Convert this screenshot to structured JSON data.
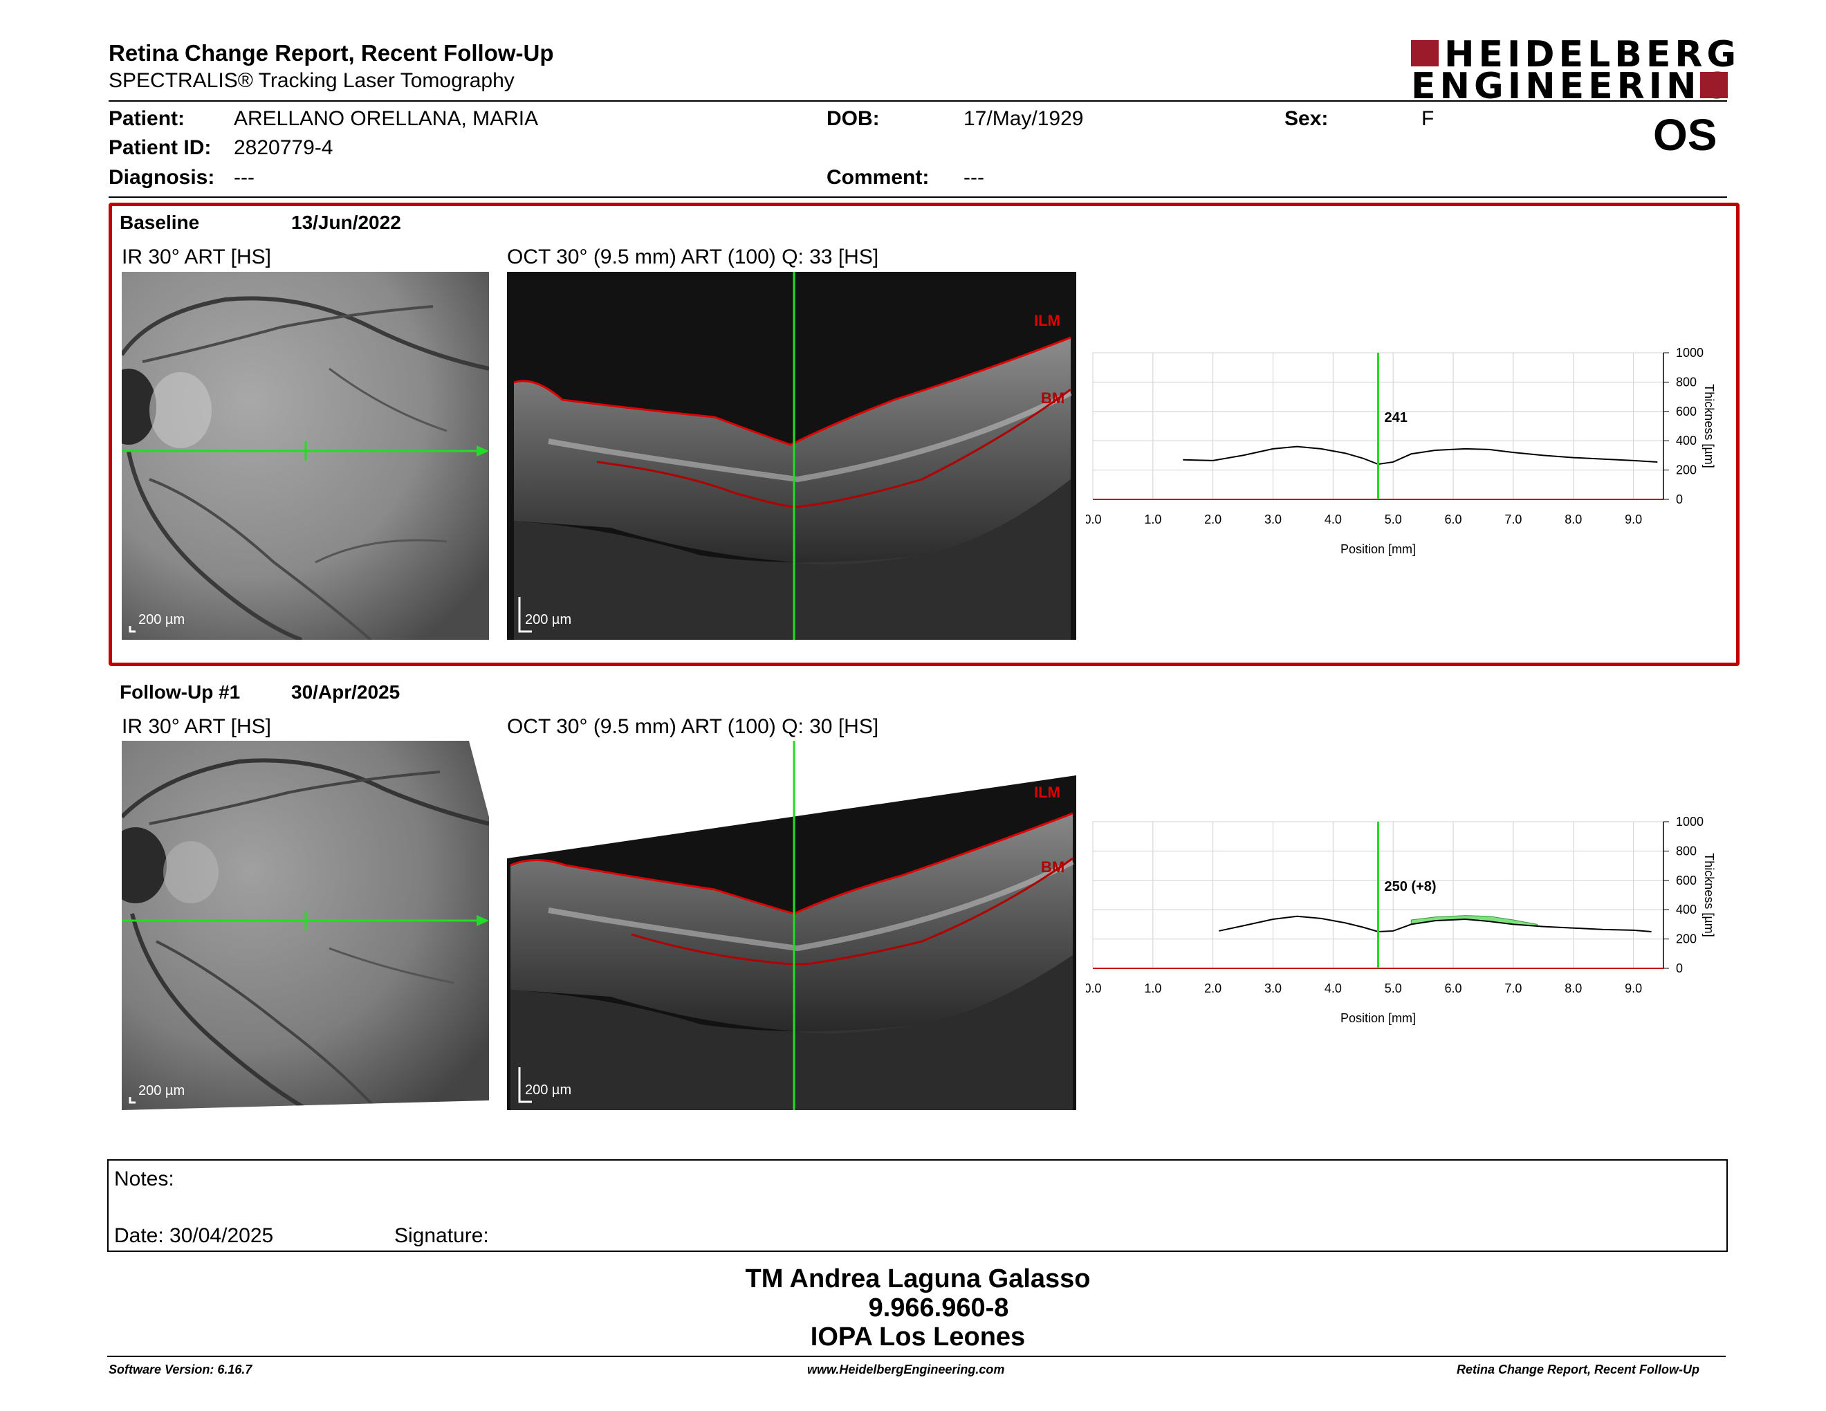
{
  "report": {
    "title": "Retina Change Report, Recent Follow-Up",
    "subtitle": "SPECTRALIS® Tracking Laser Tomography",
    "logo_line1": "HEIDELBERG",
    "logo_line2": "ENGINEERING",
    "eye": "OS"
  },
  "patient": {
    "patient_label": "Patient:",
    "patient_value": "ARELLANO ORELLANA, MARIA",
    "id_label": "Patient ID:",
    "id_value": "2820779-4",
    "diagnosis_label": "Diagnosis:",
    "diagnosis_value": "---",
    "dob_label": "DOB:",
    "dob_value": "17/May/1929",
    "comment_label": "Comment:",
    "comment_value": "---",
    "sex_label": "Sex:",
    "sex_value": "F"
  },
  "baseline": {
    "label": "Baseline",
    "date": "13/Jun/2022",
    "ir_title": "IR 30° ART [HS]",
    "oct_title": "OCT 30° (9.5 mm) ART (100) Q: 33 [HS]",
    "ir_scale": "200 µm",
    "oct_scale": "200 µm",
    "ilm": "ILM",
    "bm": "BM"
  },
  "followup": {
    "label": "Follow-Up #1",
    "date": "30/Apr/2025",
    "ir_title": "IR 30° ART [HS]",
    "oct_title": "OCT 30° (9.5 mm) ART (100) Q: 30 [HS]",
    "ir_scale": "200 µm",
    "oct_scale": "200 µm",
    "ilm": "ILM",
    "bm": "BM"
  },
  "colors": {
    "accent_red": "#c00000",
    "logo_red": "#9b1b2b",
    "scan_green": "#22dd22",
    "change_green": "#7fe07f"
  },
  "chart_data": [
    {
      "type": "line",
      "xlabel": "Position [mm]",
      "ylabel": "Thickness [µm]",
      "xlim": [
        0,
        9.5
      ],
      "ylim": [
        0,
        1000
      ],
      "x_ticks": [
        "0.0",
        "1.0",
        "2.0",
        "3.0",
        "4.0",
        "5.0",
        "6.0",
        "7.0",
        "8.0",
        "9.0"
      ],
      "y_ticks": [
        "0",
        "200",
        "400",
        "600",
        "800",
        "1000"
      ],
      "cursor_x": 4.75,
      "cursor_label": "241",
      "series": [
        {
          "x": [
            1.5,
            2.0,
            2.5,
            3.0,
            3.4,
            3.8,
            4.2,
            4.5,
            4.75,
            5.0,
            5.3,
            5.7,
            6.2,
            6.6,
            7.0,
            7.5,
            8.0,
            8.5,
            9.0,
            9.4
          ],
          "y": [
            270,
            265,
            300,
            345,
            360,
            345,
            315,
            280,
            240,
            255,
            310,
            335,
            345,
            340,
            320,
            300,
            285,
            275,
            265,
            255
          ]
        }
      ]
    },
    {
      "type": "line",
      "xlabel": "Position [mm]",
      "ylabel": "Thickness [µm]",
      "xlim": [
        0,
        9.5
      ],
      "ylim": [
        0,
        1000
      ],
      "x_ticks": [
        "0.0",
        "1.0",
        "2.0",
        "3.0",
        "4.0",
        "5.0",
        "6.0",
        "7.0",
        "8.0",
        "9.0"
      ],
      "y_ticks": [
        "0",
        "200",
        "400",
        "600",
        "800",
        "1000"
      ],
      "cursor_x": 4.75,
      "cursor_label": "250 (+8)",
      "series": [
        {
          "x": [
            2.1,
            2.5,
            3.0,
            3.4,
            3.8,
            4.2,
            4.5,
            4.75,
            5.0,
            5.3,
            5.7,
            6.2,
            6.6,
            7.0,
            7.5,
            8.0,
            8.5,
            9.0,
            9.3
          ],
          "y": [
            255,
            290,
            335,
            355,
            340,
            310,
            280,
            250,
            255,
            300,
            325,
            335,
            320,
            300,
            285,
            275,
            265,
            260,
            250
          ]
        }
      ],
      "change_region": {
        "x": [
          5.3,
          5.7,
          6.2,
          6.6,
          7.0,
          7.4
        ],
        "upper": [
          330,
          350,
          360,
          355,
          330,
          300
        ],
        "lower": [
          300,
          325,
          335,
          320,
          300,
          290
        ]
      }
    }
  ],
  "notes": {
    "notes_label": "Notes:",
    "date_label": "Date: 30/04/2025",
    "signature_label": "Signature:"
  },
  "signature_block": {
    "line1": "TM Andrea Laguna Galasso",
    "line2": "9.966.960-8",
    "line3": "IOPA Los Leones"
  },
  "footer": {
    "left": "Software Version: 6.16.7",
    "center": "www.HeidelbergEngineering.com",
    "right": "Retina Change Report, Recent Follow-Up"
  }
}
